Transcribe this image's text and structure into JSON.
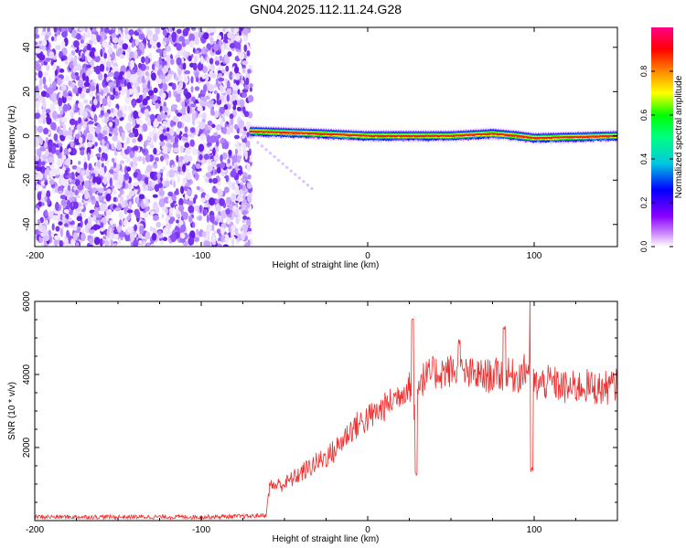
{
  "figure": {
    "title": "GN04.2025.112.11.24.G28"
  },
  "chart_data": [
    {
      "type": "heatmap",
      "title": "GN04.2025.112.11.24.G28",
      "xlabel": "Height of straight line (km)",
      "ylabel": "Frequency (Hz)",
      "xlim": [
        -200,
        150
      ],
      "ylim": [
        -50,
        49
      ],
      "x_ticks": [
        -200,
        -100,
        0,
        100
      ],
      "y_ticks": [
        -40,
        -20,
        0,
        20,
        40
      ],
      "noise_region_x": [
        -200,
        -70
      ],
      "tone": [
        {
          "x": -70,
          "freq": 2.0
        },
        {
          "x": -50,
          "freq": 1.5
        },
        {
          "x": -30,
          "freq": 1.0
        },
        {
          "x": -15,
          "freq": 0.5
        },
        {
          "x": 0,
          "freq": 0.0
        },
        {
          "x": 50,
          "freq": 0.0
        },
        {
          "x": 75,
          "freq": 1.0
        },
        {
          "x": 90,
          "freq": 0.0
        },
        {
          "x": 100,
          "freq": -1.0
        },
        {
          "x": 150,
          "freq": 0.0
        }
      ],
      "colorbar": {
        "label": "Normalized spectral amplitude",
        "range": [
          0,
          1
        ],
        "ticks": [
          0.0,
          0.2,
          0.4,
          0.6,
          0.8
        ],
        "tick_labels": [
          "0.0",
          "0.2",
          "0.4",
          "0.6",
          "0.8"
        ],
        "colors": [
          "#ffffff",
          "#8800ff",
          "#0000ff",
          "#00e0e0",
          "#00ff00",
          "#ffff00",
          "#ff8800",
          "#ff0000",
          "#ff0088"
        ]
      },
      "grid": false
    },
    {
      "type": "line",
      "xlabel": "Height of straight line (km)",
      "ylabel": "SNR (10 * v/v)",
      "xlim": [
        -200,
        150
      ],
      "ylim": [
        0,
        6000
      ],
      "x_ticks": [
        -200,
        -100,
        0,
        100
      ],
      "y_ticks": [
        2000,
        4000,
        6000
      ],
      "grid": false,
      "line_color": "#ee3030",
      "series": [
        {
          "x": [
            -200,
            -150,
            -100,
            -70,
            -61,
            -59,
            -50,
            -40,
            -30,
            -20,
            -10,
            0,
            10,
            20,
            25,
            28,
            30,
            40,
            50,
            60,
            70,
            80,
            90,
            97,
            100,
            110,
            120,
            130,
            140,
            150
          ],
          "y": [
            100,
            100,
            100,
            120,
            150,
            950,
            1000,
            1300,
            1600,
            1900,
            2500,
            2800,
            3100,
            3500,
            3700,
            3100,
            3800,
            4050,
            4100,
            4000,
            3950,
            4000,
            3950,
            4200,
            3700,
            3800,
            3600,
            3700,
            3600,
            3700
          ]
        }
      ],
      "annotations_spikes": [
        {
          "x": 27,
          "y": 5500
        },
        {
          "x": 29,
          "y": 1300
        },
        {
          "x": 98,
          "y": 6050
        },
        {
          "x": 98.5,
          "y": 1400
        },
        {
          "x": 82,
          "y": 5300
        },
        {
          "x": 55,
          "y": 4900
        }
      ]
    }
  ]
}
